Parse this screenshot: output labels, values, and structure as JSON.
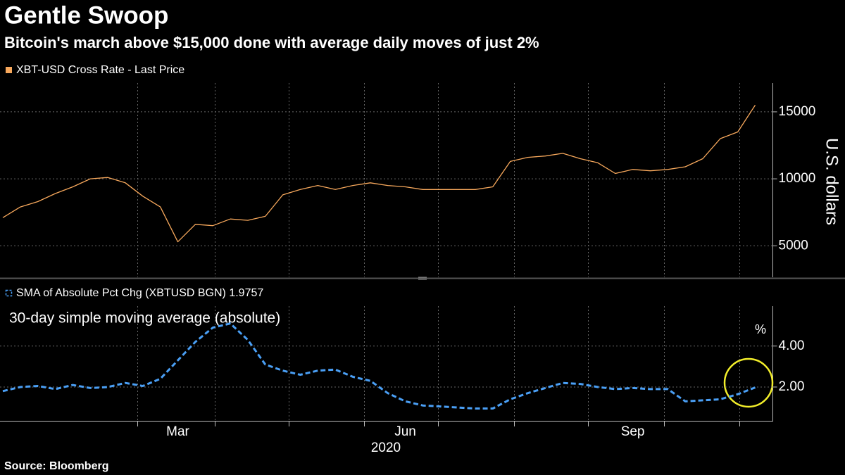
{
  "title": "Gentle Swoop",
  "subtitle": "Bitcoin's march above $15,000 done with average daily moves of just 2%",
  "source": "Source: Bloomberg",
  "chart_data": [
    {
      "type": "line",
      "ylabel": "U.S. dollars",
      "series": [
        {
          "name": "XBT-USD Cross Rate - Last Price",
          "color": "#f7a85c",
          "values": [
            7100,
            7900,
            8300,
            8900,
            9400,
            10000,
            10100,
            9700,
            8700,
            7900,
            5300,
            6600,
            6500,
            7000,
            6900,
            7200,
            8800,
            9200,
            9500,
            9200,
            9500,
            9700,
            9500,
            9400,
            9200,
            9200,
            9200,
            9200,
            9400,
            11300,
            11600,
            11700,
            11900,
            11500,
            11200,
            10400,
            10700,
            10600,
            10700,
            10900,
            11500,
            13000,
            13500,
            15500
          ]
        }
      ],
      "ylim": [
        2650,
        17150
      ],
      "yticks": [
        5000,
        10000,
        15000
      ],
      "grid": true
    },
    {
      "type": "line",
      "annotation": "30-day simple moving average (absolute)",
      "yunit": "%",
      "xlabel": "2020",
      "categories": [
        null,
        null,
        null,
        null,
        null,
        null,
        null,
        null,
        null,
        null,
        "Mar",
        null,
        null,
        null,
        null,
        null,
        null,
        null,
        null,
        null,
        null,
        null,
        null,
        "Jun",
        null,
        null,
        null,
        null,
        null,
        null,
        null,
        null,
        null,
        null,
        null,
        null,
        "Sep",
        null,
        null,
        null,
        null,
        null,
        null,
        null
      ],
      "series": [
        {
          "name": "SMA of Absolute Pct Chg (XBTUSD BGN) 1.9757",
          "color": "#4a9ff5",
          "values": [
            1.8,
            2.0,
            2.05,
            1.9,
            2.1,
            1.95,
            2.0,
            2.2,
            2.05,
            2.4,
            3.3,
            4.2,
            4.9,
            5.1,
            4.3,
            3.1,
            2.8,
            2.6,
            2.8,
            2.85,
            2.5,
            2.3,
            1.7,
            1.3,
            1.1,
            1.05,
            1.0,
            0.95,
            0.95,
            1.4,
            1.7,
            1.95,
            2.2,
            2.15,
            2.0,
            1.9,
            1.95,
            1.9,
            1.9,
            1.3,
            1.35,
            1.4,
            1.65,
            1.98
          ]
        }
      ],
      "ylim": [
        0.35,
        5.95
      ],
      "yticks": [
        {
          "value": 2,
          "label": "2.00"
        },
        {
          "value": 4,
          "label": "4.00"
        }
      ],
      "grid": true
    }
  ]
}
